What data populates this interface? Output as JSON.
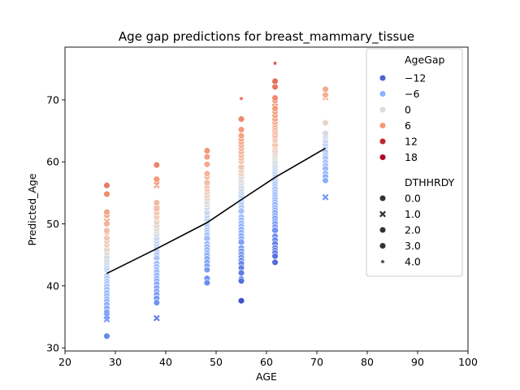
{
  "chart_data": {
    "type": "scatter",
    "title": "Age gap predictions for breast_mammary_tissue",
    "xlabel": "AGE",
    "ylabel": "Predicted_Age",
    "xlim": [
      20,
      100
    ],
    "ylim": [
      29.5,
      78.5
    ],
    "xticks": [
      "20",
      "30",
      "40",
      "50",
      "60",
      "70",
      "80",
      "90",
      "100"
    ],
    "yticks": [
      "30",
      "40",
      "50",
      "60",
      "70"
    ],
    "grid": false,
    "legend_placement": "upper-right",
    "colormap": "coolwarm",
    "hue_range": [
      -17,
      23
    ],
    "legend": {
      "hue_title": "AgeGap",
      "hue_entries": [
        {
          "label": "−12",
          "value": -12,
          "color": "#4a63d3"
        },
        {
          "label": "−6",
          "value": -6,
          "color": "#8fb1fe"
        },
        {
          "label": "0",
          "value": 0,
          "color": "#d9dce1"
        },
        {
          "label": "6",
          "value": 6,
          "color": "#f4987a"
        },
        {
          "label": "12",
          "value": 12,
          "color": "#c0282f"
        },
        {
          "label": "18",
          "value": 18,
          "color": "#b40426"
        }
      ],
      "style_title": "DTHHRDY",
      "style_entries": [
        {
          "label": "0.0",
          "marker": "circle"
        },
        {
          "label": "1.0",
          "marker": "x"
        },
        {
          "label": "2.0",
          "marker": "circle"
        },
        {
          "label": "3.0",
          "marker": "circle"
        },
        {
          "label": "4.0",
          "marker": "star"
        }
      ]
    },
    "trend_line": {
      "x": [
        28.3,
        38.2,
        48.2,
        55.0,
        61.7,
        71.7
      ],
      "y": [
        42.0,
        46.0,
        50.2,
        53.9,
        57.5,
        62.2
      ]
    },
    "groups": [
      {
        "x": 28.3,
        "mean": 42.0,
        "values": [
          56.2,
          54.8,
          51.9,
          51.4,
          50.4,
          50.0,
          48.9,
          48.6,
          47.7,
          47.2,
          46.6,
          45.9,
          45.4,
          44.7,
          44.2,
          43.8,
          43.4,
          42.9,
          42.6,
          42.1,
          41.6,
          41.2,
          40.7,
          40.3,
          39.9,
          39.4,
          38.9,
          38.4,
          37.9,
          37.5,
          37.0,
          36.4,
          35.8,
          35.1,
          34.6,
          31.9
        ],
        "markers": {
          "35.1": "x",
          "34.6": "x",
          "42.1": "x",
          "50.4": "x"
        }
      },
      {
        "x": 38.2,
        "mean": 46.0,
        "values": [
          59.5,
          57.2,
          56.7,
          56.2,
          53.4,
          53.1,
          52.4,
          51.8,
          51.2,
          50.9,
          50.3,
          49.7,
          49.2,
          48.8,
          48.3,
          47.7,
          47.2,
          46.8,
          46.4,
          45.9,
          45.5,
          45.0,
          44.5,
          44.1,
          43.6,
          43.1,
          42.6,
          42.2,
          41.7,
          41.2,
          40.8,
          40.3,
          39.7,
          39.1,
          38.6,
          38.0,
          37.3,
          34.8
        ],
        "markers": {
          "56.2": "x",
          "34.8": "x",
          "53.1": "x",
          "44.1": "x"
        }
      },
      {
        "x": 48.2,
        "mean": 50.2,
        "values": [
          61.8,
          60.8,
          59.6,
          58.1,
          57.6,
          57.1,
          56.6,
          56.1,
          55.6,
          55.1,
          54.6,
          54.1,
          53.6,
          53.1,
          52.6,
          52.2,
          51.8,
          51.3,
          50.8,
          50.4,
          49.9,
          49.5,
          49.0,
          48.6,
          48.2,
          47.7,
          47.2,
          46.8,
          46.3,
          45.8,
          45.3,
          44.9,
          44.4,
          43.8,
          43.2,
          42.6,
          41.2,
          40.5
        ],
        "markers": {
          "57.1": "x",
          "52.2": "x",
          "47.2": "x"
        }
      },
      {
        "x": 55.0,
        "mean": 53.9,
        "values": [
          70.2,
          66.9,
          65.2,
          64.2,
          63.7,
          63.2,
          62.7,
          62.2,
          61.6,
          61.1,
          60.6,
          60.1,
          59.6,
          59.1,
          58.6,
          58.1,
          57.6,
          57.1,
          56.6,
          56.1,
          55.6,
          55.1,
          54.6,
          54.1,
          53.6,
          53.1,
          52.6,
          52.1,
          51.6,
          51.1,
          50.6,
          50.1,
          49.6,
          49.1,
          48.6,
          48.1,
          47.6,
          47.1,
          46.6,
          46.1,
          45.6,
          45.1,
          44.6,
          44.1,
          43.6,
          42.9,
          42.1,
          41.1,
          40.8,
          37.6
        ],
        "markers": {
          "70.2": "star",
          "59.6": "x",
          "51.6": "x",
          "46.6": "x"
        }
      },
      {
        "x": 61.7,
        "mean": 57.5,
        "values": [
          75.9,
          73.0,
          72.1,
          70.3,
          69.9,
          69.5,
          68.6,
          68.1,
          67.5,
          66.9,
          66.4,
          66.0,
          65.6,
          65.2,
          64.8,
          64.3,
          63.9,
          63.5,
          63.1,
          62.7,
          62.3,
          61.8,
          61.4,
          61.0,
          60.6,
          60.1,
          59.7,
          59.3,
          58.9,
          58.5,
          58.1,
          57.6,
          57.2,
          56.8,
          56.4,
          56.0,
          55.6,
          55.1,
          54.7,
          54.3,
          53.9,
          53.5,
          53.1,
          52.6,
          52.2,
          51.8,
          51.3,
          50.9,
          50.4,
          50.0,
          49.5,
          49.0,
          48.5,
          48.0,
          47.4,
          46.8,
          46.1,
          45.7,
          45.3,
          44.8,
          43.8
        ],
        "markers": {
          "75.9": "star",
          "69.5": "x",
          "63.1": "x",
          "56.0": "x",
          "48.5": "x"
        }
      },
      {
        "x": 71.7,
        "mean": 62.2,
        "values": [
          71.7,
          70.8,
          70.4,
          66.3,
          64.6,
          64.2,
          63.9,
          63.4,
          62.9,
          62.5,
          62.1,
          61.6,
          61.0,
          60.6,
          59.9,
          59.4,
          58.9,
          58.1,
          57.6,
          57.0,
          54.3
        ],
        "markers": {
          "70.4": "x",
          "54.3": "x"
        }
      }
    ]
  }
}
